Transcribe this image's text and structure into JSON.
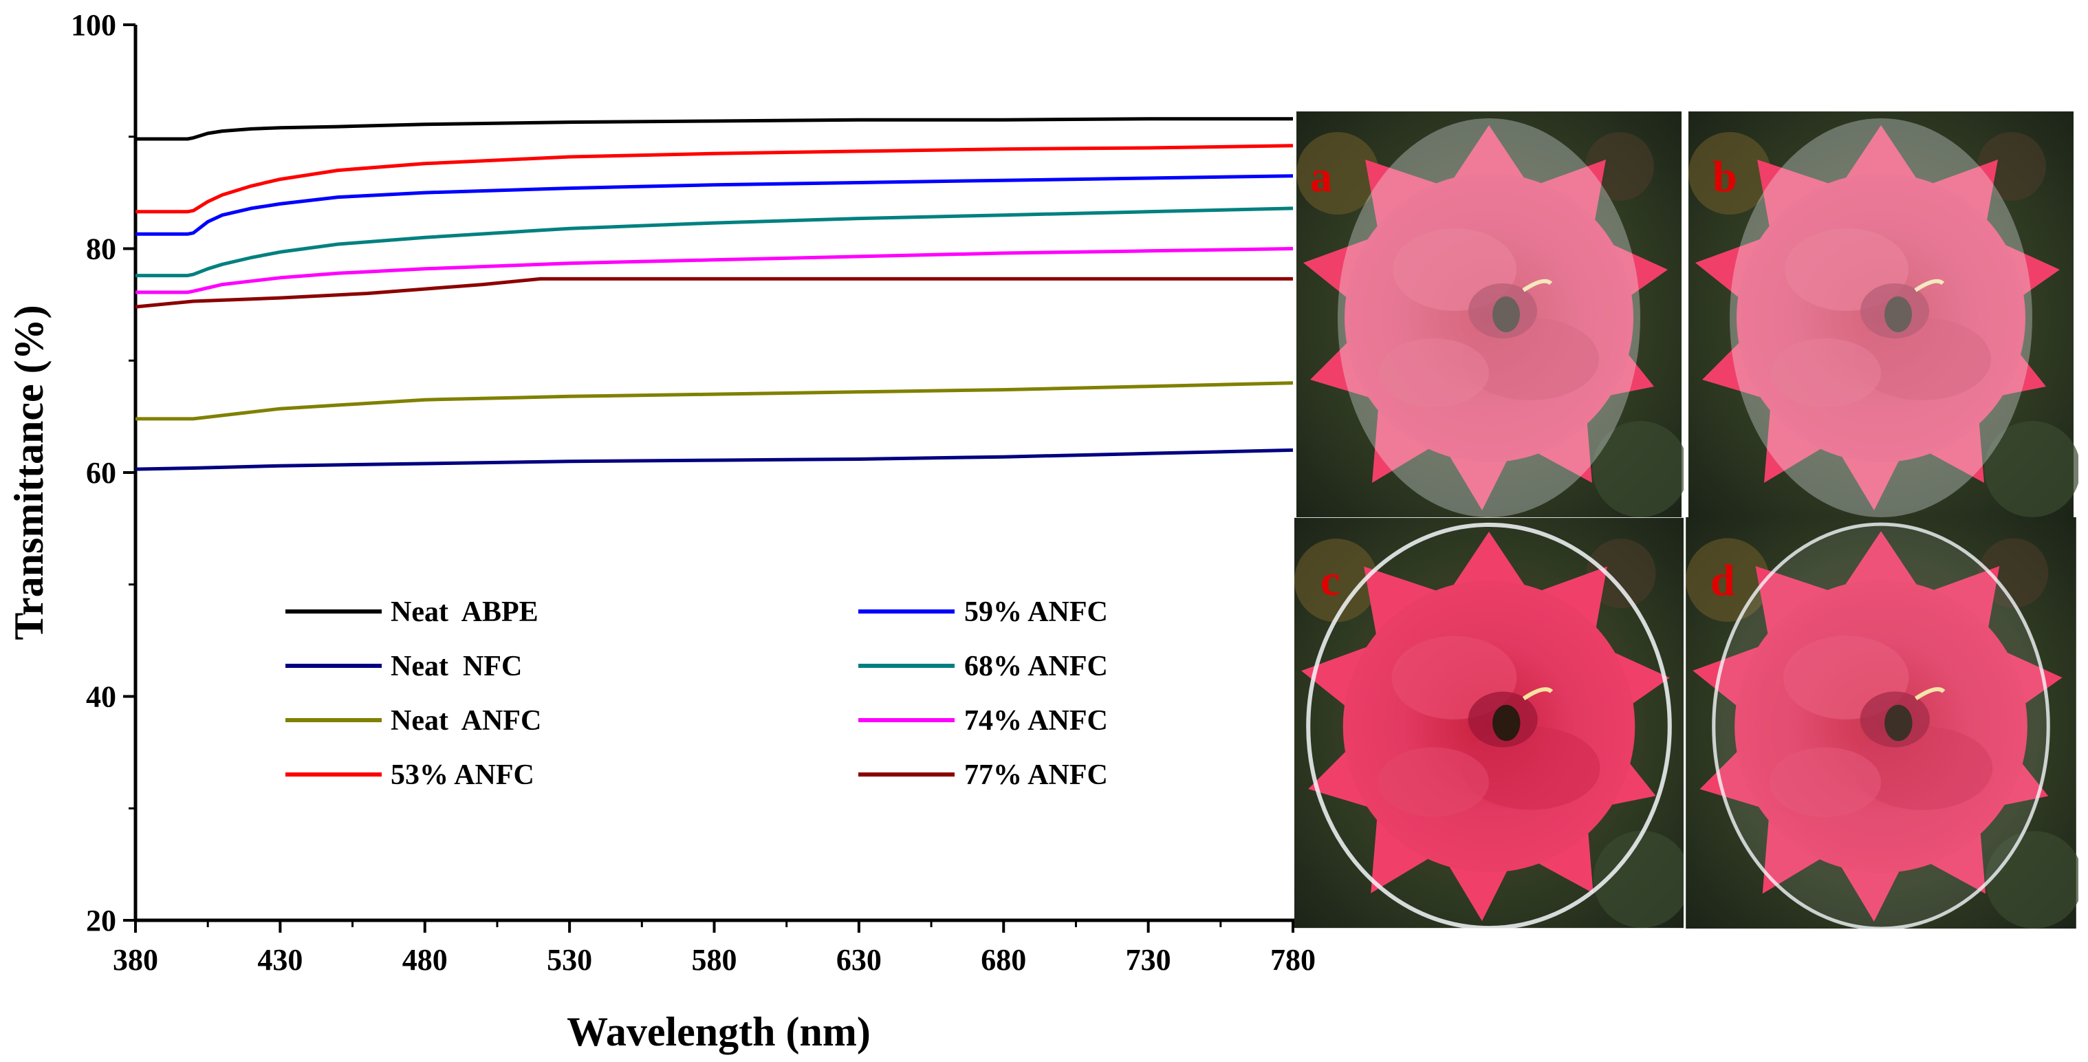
{
  "chart_data": {
    "type": "line",
    "title": "",
    "xlabel": "Wavelength (nm)",
    "ylabel": "Transmittance (%)",
    "xlim": [
      380,
      780
    ],
    "ylim": [
      20,
      100
    ],
    "xticks": [
      380,
      430,
      480,
      530,
      580,
      630,
      680,
      730,
      780
    ],
    "yticks": [
      20,
      40,
      60,
      80,
      100
    ],
    "grid": false,
    "legend_position": "lower-center",
    "series": [
      {
        "name": "Neat  ABPE",
        "color": "#000000",
        "x": [
          380,
          398,
          400,
          405,
          410,
          420,
          430,
          450,
          480,
          530,
          580,
          630,
          680,
          730,
          780
        ],
        "y": [
          89.8,
          89.8,
          89.9,
          90.3,
          90.5,
          90.7,
          90.8,
          90.9,
          91.1,
          91.3,
          91.4,
          91.5,
          91.5,
          91.6,
          91.6
        ]
      },
      {
        "name": "Neat  NFC",
        "color": "#000080",
        "x": [
          380,
          400,
          430,
          480,
          530,
          580,
          630,
          680,
          730,
          780
        ],
        "y": [
          60.3,
          60.4,
          60.6,
          60.8,
          61.0,
          61.1,
          61.2,
          61.4,
          61.7,
          62.0
        ]
      },
      {
        "name": "Neat  ANFC",
        "color": "#808000",
        "x": [
          380,
          400,
          430,
          480,
          530,
          580,
          630,
          680,
          730,
          780
        ],
        "y": [
          64.8,
          64.8,
          65.7,
          66.5,
          66.8,
          67.0,
          67.2,
          67.4,
          67.7,
          68.0
        ]
      },
      {
        "name": "53% ANFC",
        "color": "#ff0000",
        "x": [
          380,
          398,
          400,
          405,
          410,
          420,
          430,
          450,
          480,
          530,
          580,
          630,
          680,
          730,
          780
        ],
        "y": [
          83.3,
          83.3,
          83.4,
          84.2,
          84.8,
          85.6,
          86.2,
          87.0,
          87.6,
          88.2,
          88.5,
          88.7,
          88.9,
          89.0,
          89.2
        ]
      },
      {
        "name": "59% ANFC",
        "color": "#0000ff",
        "x": [
          380,
          398,
          400,
          405,
          410,
          420,
          430,
          450,
          480,
          530,
          580,
          630,
          680,
          730,
          780
        ],
        "y": [
          81.3,
          81.3,
          81.4,
          82.4,
          83.0,
          83.6,
          84.0,
          84.6,
          85.0,
          85.4,
          85.7,
          85.9,
          86.1,
          86.3,
          86.5
        ]
      },
      {
        "name": "68% ANFC",
        "color": "#008080",
        "x": [
          380,
          398,
          400,
          405,
          410,
          420,
          430,
          450,
          480,
          530,
          580,
          630,
          680,
          730,
          780
        ],
        "y": [
          77.6,
          77.6,
          77.7,
          78.2,
          78.6,
          79.2,
          79.7,
          80.4,
          81.0,
          81.8,
          82.3,
          82.7,
          83.0,
          83.3,
          83.6
        ]
      },
      {
        "name": "74% ANFC",
        "color": "#ff00ff",
        "x": [
          380,
          398,
          400,
          405,
          410,
          420,
          430,
          450,
          480,
          530,
          580,
          630,
          680,
          730,
          780
        ],
        "y": [
          76.1,
          76.1,
          76.2,
          76.5,
          76.8,
          77.1,
          77.4,
          77.8,
          78.2,
          78.7,
          79.0,
          79.3,
          79.6,
          79.8,
          80.0
        ]
      },
      {
        "name": "77% ANFC",
        "color": "#8b0000",
        "x": [
          380,
          400,
          430,
          460,
          480,
          500,
          520,
          530,
          580,
          630,
          680,
          730,
          780
        ],
        "y": [
          74.8,
          75.3,
          75.6,
          76.0,
          76.4,
          76.8,
          77.3,
          77.3,
          77.3,
          77.3,
          77.3,
          77.3,
          77.3
        ]
      }
    ]
  },
  "panels": {
    "colors": {
      "background": "#2c3320",
      "petal": "#e2345e",
      "petal_dark": "#b81c42",
      "film": "#eef3f8",
      "letter": "#e00000"
    },
    "items": [
      {
        "label": "a",
        "film": "hazy-circle"
      },
      {
        "label": "b",
        "film": "hazy-circle"
      },
      {
        "label": "c",
        "film": "clear-ring"
      },
      {
        "label": "d",
        "film": "clear-ring"
      }
    ]
  }
}
